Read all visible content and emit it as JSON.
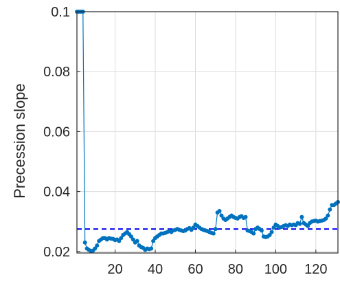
{
  "chart_data": {
    "type": "line",
    "xlabel": "",
    "ylabel": "Precession slope",
    "xlim": [
      1,
      131
    ],
    "ylim": [
      0.0195,
      0.1
    ],
    "xticks": [
      20,
      40,
      60,
      80,
      100,
      120
    ],
    "yticks": [
      0.02,
      0.04,
      0.06,
      0.08,
      0.1
    ],
    "ytick_labels": [
      "0.02",
      "0.04",
      "0.06",
      "0.08",
      "0.1"
    ],
    "grid": true,
    "reference_line": {
      "y": 0.0275,
      "style": "dashed",
      "color": "#0000ee"
    },
    "series": [
      {
        "color": "#0072bd",
        "marker": "circle",
        "x": [
          1,
          2,
          3,
          4,
          5,
          6,
          7,
          8,
          9,
          10,
          11,
          12,
          13,
          14,
          15,
          16,
          17,
          18,
          19,
          20,
          21,
          22,
          23,
          24,
          25,
          26,
          27,
          28,
          29,
          30,
          31,
          32,
          33,
          34,
          35,
          36,
          37,
          38,
          39,
          40,
          41,
          42,
          43,
          44,
          45,
          46,
          47,
          48,
          49,
          50,
          51,
          52,
          53,
          54,
          55,
          56,
          57,
          58,
          59,
          60,
          61,
          62,
          63,
          64,
          65,
          66,
          67,
          68,
          69,
          70,
          71,
          72,
          73,
          74,
          75,
          76,
          77,
          78,
          79,
          80,
          81,
          82,
          83,
          84,
          85,
          86,
          87,
          88,
          89,
          90,
          91,
          92,
          93,
          94,
          95,
          96,
          97,
          98,
          99,
          100,
          101,
          102,
          103,
          104,
          105,
          106,
          107,
          108,
          109,
          110,
          111,
          112,
          113,
          114,
          115,
          116,
          117,
          118,
          119,
          120,
          121,
          122,
          123,
          124,
          125,
          126,
          127,
          128,
          129,
          130,
          131
        ],
        "y": [
          0.1,
          0.1,
          0.1,
          0.1,
          0.023,
          0.021,
          0.0205,
          0.0202,
          0.0203,
          0.021,
          0.022,
          0.0235,
          0.024,
          0.0245,
          0.0245,
          0.024,
          0.0245,
          0.0243,
          0.0242,
          0.0238,
          0.024,
          0.0235,
          0.0245,
          0.0255,
          0.026,
          0.0265,
          0.0258,
          0.025,
          0.024,
          0.023,
          0.0235,
          0.022,
          0.0215,
          0.0212,
          0.0205,
          0.021,
          0.0208,
          0.021,
          0.0235,
          0.0245,
          0.025,
          0.0255,
          0.026,
          0.026,
          0.0262,
          0.0265,
          0.0268,
          0.0265,
          0.027,
          0.0272,
          0.0275,
          0.0272,
          0.027,
          0.0268,
          0.027,
          0.0275,
          0.0278,
          0.0272,
          0.028,
          0.029,
          0.0285,
          0.028,
          0.0275,
          0.0272,
          0.027,
          0.0268,
          0.0265,
          0.0262,
          0.026,
          0.0275,
          0.033,
          0.0335,
          0.032,
          0.031,
          0.0305,
          0.031,
          0.0315,
          0.032,
          0.0315,
          0.0312,
          0.031,
          0.0315,
          0.0318,
          0.0312,
          0.0315,
          0.027,
          0.0268,
          0.0265,
          0.026,
          0.0275,
          0.028,
          0.0275,
          0.027,
          0.025,
          0.0248,
          0.025,
          0.0255,
          0.0265,
          0.028,
          0.029,
          0.0285,
          0.028,
          0.0282,
          0.0285,
          0.0288,
          0.0285,
          0.029,
          0.0288,
          0.029,
          0.0288,
          0.0295,
          0.0292,
          0.0315,
          0.0295,
          0.029,
          0.0285,
          0.0295,
          0.03,
          0.0302,
          0.0303,
          0.03,
          0.0302,
          0.0303,
          0.0305,
          0.031,
          0.032,
          0.034,
          0.0355,
          0.0355,
          0.036,
          0.0365
        ]
      }
    ]
  }
}
